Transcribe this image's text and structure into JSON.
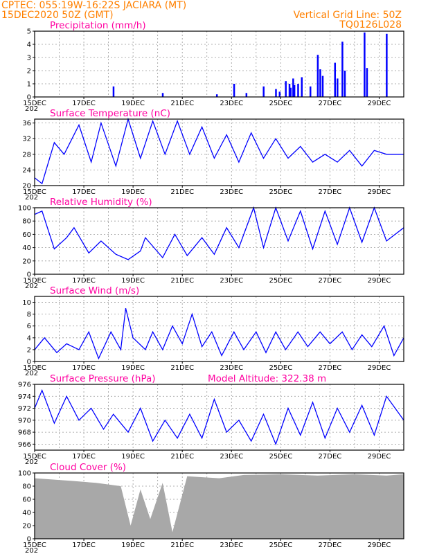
{
  "header": {
    "line1_left": "CPTEC:   055:19W-16:22S  JACIARA (MT)",
    "line2_left": "15DEC2020 50Z (GMT)",
    "line1_right": "Vertical Grid Line: 50Z",
    "line2_right": "TQ0126L028"
  },
  "colors": {
    "header": "#ff8000",
    "title": "#ff00a0",
    "series": "#0000ff",
    "cloud": "#a8a8a8",
    "grid": "#999999"
  },
  "x_axis_labels": [
    "15DEC",
    "17DEC",
    "19DEC",
    "21DEC",
    "23DEC",
    "25DEC",
    "27DEC",
    "29DEC"
  ],
  "x_axis_year_fragment": "202",
  "panels": [
    {
      "key": "precip",
      "title": "Precipitation (mm/h)",
      "type": "bar",
      "ylim": [
        0,
        5
      ],
      "yticks": [
        0,
        1,
        2,
        3,
        4,
        5
      ],
      "day_offset": [
        0,
        15
      ],
      "values_approx": [
        [
          3.2,
          0.8
        ],
        [
          5.2,
          0.3
        ],
        [
          7.4,
          0.2
        ],
        [
          8.1,
          1.0
        ],
        [
          8.6,
          0.3
        ],
        [
          9.3,
          0.8
        ],
        [
          9.8,
          0.6
        ],
        [
          9.95,
          0.4
        ],
        [
          10.2,
          1.2
        ],
        [
          10.35,
          1.0
        ],
        [
          10.4,
          0.7
        ],
        [
          10.5,
          1.4
        ],
        [
          10.55,
          0.9
        ],
        [
          10.7,
          1.0
        ],
        [
          10.85,
          1.5
        ],
        [
          11.2,
          0.8
        ],
        [
          11.5,
          3.2
        ],
        [
          11.6,
          2.1
        ],
        [
          11.7,
          1.6
        ],
        [
          12.2,
          2.6
        ],
        [
          12.3,
          1.4
        ],
        [
          12.5,
          4.2
        ],
        [
          12.6,
          2.0
        ],
        [
          13.4,
          4.9
        ],
        [
          13.5,
          2.2
        ],
        [
          14.3,
          4.8
        ]
      ]
    },
    {
      "key": "temp",
      "title": "Surface Temperature (nC)",
      "type": "line",
      "ylim": [
        20,
        37
      ],
      "yticks": [
        20,
        24,
        28,
        32,
        36
      ],
      "series_approx": [
        [
          0,
          22
        ],
        [
          0.3,
          20.5
        ],
        [
          0.8,
          31
        ],
        [
          1.2,
          28
        ],
        [
          1.8,
          35.5
        ],
        [
          2.3,
          26
        ],
        [
          2.7,
          36
        ],
        [
          3.3,
          25
        ],
        [
          3.8,
          37
        ],
        [
          4.3,
          27
        ],
        [
          4.8,
          36.5
        ],
        [
          5.3,
          28
        ],
        [
          5.8,
          36.5
        ],
        [
          6.3,
          28
        ],
        [
          6.8,
          35
        ],
        [
          7.3,
          27
        ],
        [
          7.8,
          33
        ],
        [
          8.3,
          26
        ],
        [
          8.8,
          33.5
        ],
        [
          9.3,
          27
        ],
        [
          9.8,
          32
        ],
        [
          10.3,
          27
        ],
        [
          10.8,
          30
        ],
        [
          11.3,
          26
        ],
        [
          11.8,
          28
        ],
        [
          12.3,
          26
        ],
        [
          12.8,
          29
        ],
        [
          13.3,
          25
        ],
        [
          13.8,
          29
        ],
        [
          14.3,
          28
        ],
        [
          15,
          28
        ]
      ]
    },
    {
      "key": "rh",
      "title": "Relative Humidity (%)",
      "type": "line",
      "ylim": [
        0,
        100
      ],
      "yticks": [
        0,
        20,
        40,
        60,
        80,
        100
      ],
      "series_approx": [
        [
          0,
          90
        ],
        [
          0.3,
          95
        ],
        [
          0.8,
          38
        ],
        [
          1.3,
          55
        ],
        [
          1.6,
          70
        ],
        [
          2.2,
          32
        ],
        [
          2.7,
          50
        ],
        [
          3.3,
          30
        ],
        [
          3.8,
          22
        ],
        [
          4.3,
          35
        ],
        [
          4.5,
          55
        ],
        [
          5.2,
          25
        ],
        [
          5.7,
          60
        ],
        [
          6.2,
          28
        ],
        [
          6.8,
          55
        ],
        [
          7.3,
          30
        ],
        [
          7.8,
          70
        ],
        [
          8.3,
          40
        ],
        [
          8.9,
          100
        ],
        [
          9.3,
          40
        ],
        [
          9.8,
          100
        ],
        [
          10.3,
          50
        ],
        [
          10.8,
          95
        ],
        [
          11.3,
          38
        ],
        [
          11.8,
          95
        ],
        [
          12.3,
          45
        ],
        [
          12.8,
          100
        ],
        [
          13.3,
          48
        ],
        [
          13.8,
          100
        ],
        [
          14.3,
          50
        ],
        [
          15,
          70
        ]
      ]
    },
    {
      "key": "wind",
      "title": "Surface Wind (m/s)",
      "type": "line",
      "ylim": [
        0,
        11
      ],
      "yticks": [
        0,
        2,
        4,
        6,
        8,
        10
      ],
      "series_approx": [
        [
          0,
          2
        ],
        [
          0.4,
          4
        ],
        [
          0.9,
          1.5
        ],
        [
          1.3,
          3
        ],
        [
          1.8,
          2
        ],
        [
          2.2,
          5
        ],
        [
          2.6,
          0.5
        ],
        [
          3.1,
          5
        ],
        [
          3.5,
          2
        ],
        [
          3.7,
          9
        ],
        [
          4.0,
          4
        ],
        [
          4.5,
          2
        ],
        [
          4.8,
          5
        ],
        [
          5.2,
          2
        ],
        [
          5.6,
          6
        ],
        [
          6.0,
          3
        ],
        [
          6.4,
          8
        ],
        [
          6.8,
          2.5
        ],
        [
          7.2,
          5
        ],
        [
          7.6,
          1
        ],
        [
          8.1,
          5
        ],
        [
          8.5,
          2
        ],
        [
          9.0,
          5
        ],
        [
          9.4,
          1.5
        ],
        [
          9.8,
          5
        ],
        [
          10.2,
          2
        ],
        [
          10.7,
          5
        ],
        [
          11.1,
          2.5
        ],
        [
          11.6,
          5
        ],
        [
          12.0,
          3
        ],
        [
          12.5,
          5
        ],
        [
          12.9,
          2
        ],
        [
          13.3,
          4.5
        ],
        [
          13.7,
          2.5
        ],
        [
          14.2,
          6
        ],
        [
          14.6,
          1
        ],
        [
          15,
          4
        ]
      ]
    },
    {
      "key": "pres",
      "title": "Surface Pressure (hPa)",
      "extra": "Model Altitude: 322.38 m",
      "type": "line",
      "ylim": [
        965,
        976
      ],
      "yticks": [
        966,
        968,
        970,
        972,
        974,
        976
      ],
      "series_approx": [
        [
          0,
          972
        ],
        [
          0.3,
          975
        ],
        [
          0.8,
          969.5
        ],
        [
          1.3,
          974
        ],
        [
          1.8,
          970
        ],
        [
          2.3,
          972
        ],
        [
          2.8,
          968.5
        ],
        [
          3.2,
          971
        ],
        [
          3.8,
          968
        ],
        [
          4.3,
          972
        ],
        [
          4.8,
          966.5
        ],
        [
          5.3,
          970
        ],
        [
          5.8,
          967
        ],
        [
          6.3,
          971
        ],
        [
          6.8,
          967
        ],
        [
          7.3,
          973.5
        ],
        [
          7.8,
          968
        ],
        [
          8.3,
          970
        ],
        [
          8.8,
          966.5
        ],
        [
          9.3,
          971
        ],
        [
          9.8,
          966
        ],
        [
          10.3,
          972
        ],
        [
          10.8,
          967.5
        ],
        [
          11.3,
          973
        ],
        [
          11.8,
          967
        ],
        [
          12.3,
          972
        ],
        [
          12.8,
          968
        ],
        [
          13.3,
          972.5
        ],
        [
          13.8,
          967.5
        ],
        [
          14.3,
          974
        ],
        [
          15,
          970
        ]
      ]
    },
    {
      "key": "cloud",
      "title": "Cloud Cover (%)",
      "type": "area",
      "ylim": [
        0,
        100
      ],
      "yticks": [
        0,
        20,
        40,
        60,
        80,
        100
      ],
      "series_approx": [
        [
          0,
          92
        ],
        [
          1.5,
          88
        ],
        [
          2.5,
          85
        ],
        [
          3.5,
          80
        ],
        [
          3.9,
          20
        ],
        [
          4.3,
          75
        ],
        [
          4.7,
          30
        ],
        [
          5.2,
          85
        ],
        [
          5.6,
          10
        ],
        [
          6.2,
          95
        ],
        [
          7.5,
          92
        ],
        [
          8.5,
          97
        ],
        [
          10,
          98
        ],
        [
          11.5,
          96
        ],
        [
          13,
          98
        ],
        [
          14.3,
          96
        ],
        [
          15,
          98
        ]
      ]
    }
  ]
}
